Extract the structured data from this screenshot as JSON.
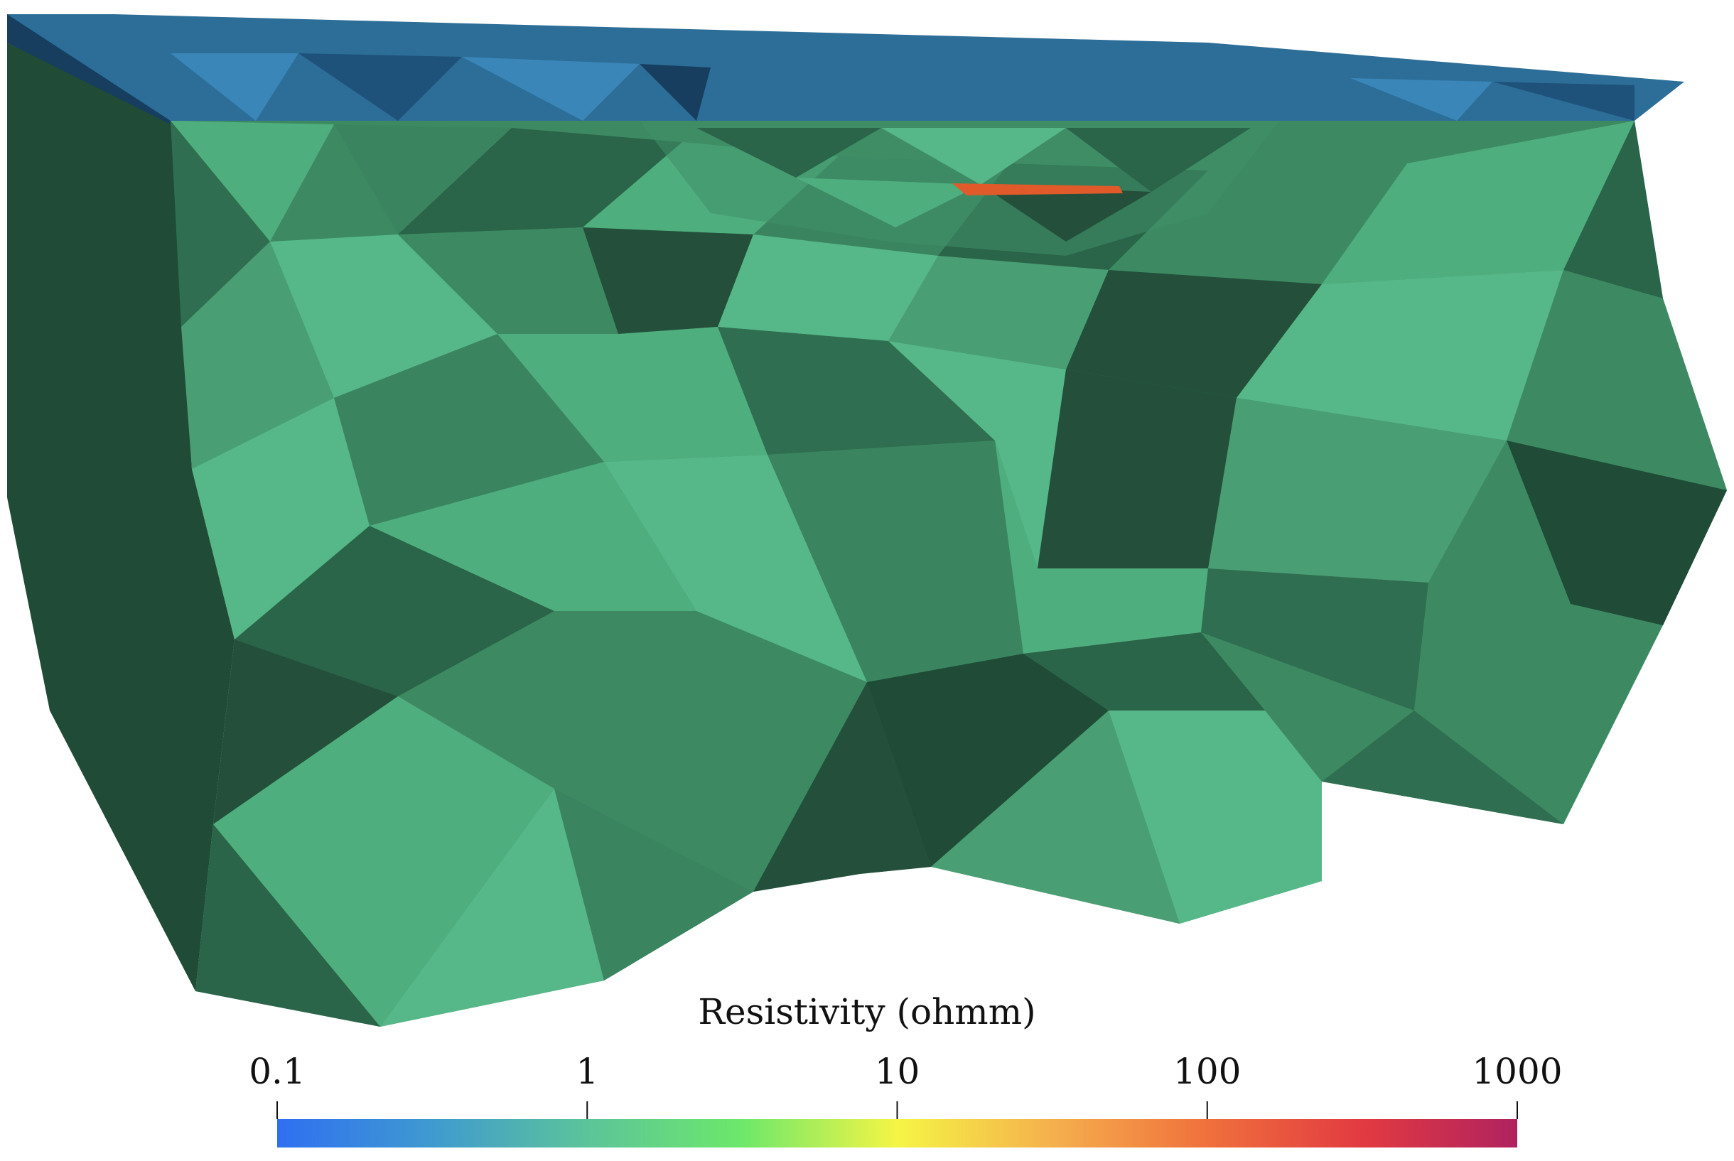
{
  "colorbar": {
    "title": "Resistivity (ohmm)",
    "scale": "log",
    "range": [
      0.1,
      1000
    ],
    "ticks": [
      "0.1",
      "1",
      "10",
      "100",
      "1000"
    ],
    "gradient_colors": [
      "#2f6ff2",
      "#3f9ad0",
      "#5cc49a",
      "#6de86a",
      "#f5f545",
      "#f5b04d",
      "#f0703c",
      "#e23a41",
      "#b0225f"
    ]
  },
  "colors": {
    "surface_layer": "#2c6e98",
    "surface_layer_dark": "#173e5e",
    "mesh_green_light": "#4fae7e",
    "mesh_green_mid": "#3d8a62",
    "mesh_green_dark": "#1f4b37",
    "anomaly_body": "#e05a2a"
  },
  "scene": {
    "description_icon": "tetrahedral-mesh-icon"
  }
}
